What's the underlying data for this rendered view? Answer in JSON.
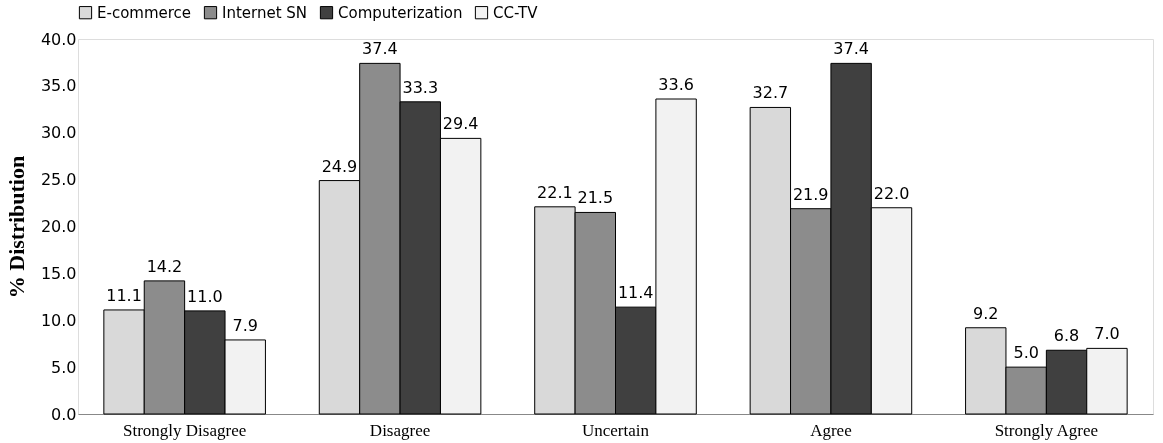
{
  "chart_data": {
    "type": "bar",
    "ylabel": "% Distribution",
    "categories": [
      "Strongly Disagree",
      "Disagree",
      "Uncertain",
      "Agree",
      "Strongly Agree"
    ],
    "series": [
      {
        "name": "E-commerce",
        "color": "#d9d9d9",
        "values": [
          11.1,
          24.9,
          22.1,
          32.7,
          9.2
        ],
        "value_labels": [
          "11.1",
          "24.9",
          "22.1",
          "32.7",
          "9.2"
        ]
      },
      {
        "name": "Internet SN",
        "color": "#8c8c8c",
        "values": [
          14.2,
          37.4,
          21.5,
          21.9,
          5.0
        ],
        "value_labels": [
          "14.2",
          "37.4",
          "21.5",
          "21.9",
          "5.0"
        ]
      },
      {
        "name": "Computerization",
        "color": "#404040",
        "values": [
          11.0,
          33.3,
          11.4,
          37.4,
          6.8
        ],
        "value_labels": [
          "11.0",
          "33.3",
          "11.4",
          "37.4",
          "6.8"
        ]
      },
      {
        "name": "CC-TV",
        "color": "#f2f2f2",
        "values": [
          7.9,
          29.4,
          33.6,
          22.0,
          7.0
        ],
        "value_labels": [
          "7.9",
          "29.4",
          "33.6",
          "22.0",
          "7.0"
        ]
      }
    ],
    "ylim": [
      0,
      40
    ],
    "yticks": [
      {
        "value": 0,
        "label": "0.0"
      },
      {
        "value": 5,
        "label": "5.0"
      },
      {
        "value": 10,
        "label": "10.0"
      },
      {
        "value": 15,
        "label": "15.0"
      },
      {
        "value": 20,
        "label": "20.0"
      },
      {
        "value": 25,
        "label": "25.0"
      },
      {
        "value": 30,
        "label": "30.0"
      },
      {
        "value": 35,
        "label": "35.0"
      },
      {
        "value": 40,
        "label": "40.0"
      }
    ],
    "grid": false,
    "legend": "top"
  }
}
